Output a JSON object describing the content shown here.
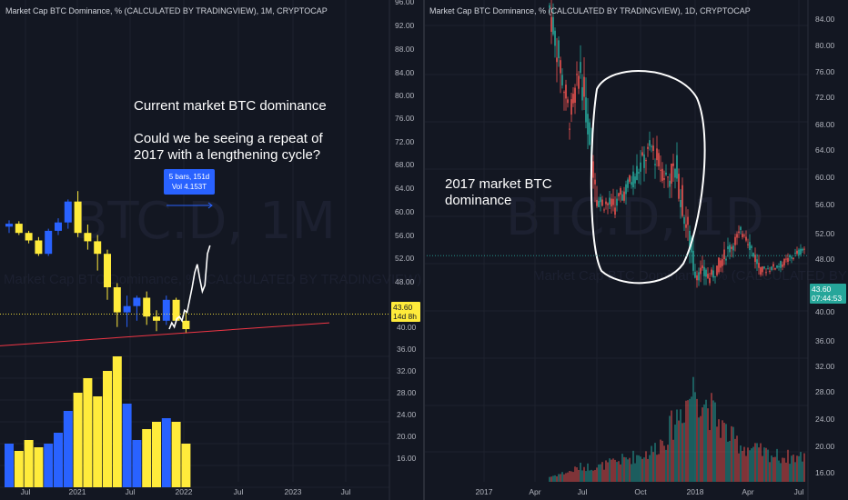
{
  "left": {
    "header": "Market Cap BTC Dominance, % (CALCULATED BY TRADINGVIEW), 1M, CRYPTOCAP",
    "watermark": "BTC.D, 1M",
    "watermark_sub": "Market Cap BTC Dominance, % (CALCULATED BY TRADINGVIEW)",
    "annotation": "Current market BTC dominance\n\nCould we be seeing a repeat of\n2017 with a lengthening cycle?",
    "measure_label": "5 bars, 151d\nVol 4.153T",
    "price_tag": "43.60",
    "countdown": "14d 8h",
    "y_ticks": [
      "40.00",
      "36.00",
      "32.00",
      "28.00",
      "24.00",
      "20.00",
      "16.00"
    ],
    "x_ticks": [
      "Jul",
      "2021",
      "Jul",
      "2022",
      "Jul",
      "2023",
      "Jul"
    ]
  },
  "right": {
    "header": "Market Cap BTC Dominance, % (CALCULATED BY TRADINGVIEW), 1D, CRYPTOCAP",
    "watermark": "BTC.D, 1D",
    "watermark_sub": "Market Cap BTC Dominance, % (CALCULATED BY TRADINGVIEW)",
    "annotation": "2017 market BTC\ndominance",
    "price_tag": "43.60",
    "countdown": "07:44:53",
    "y_ticks": [
      "84.00",
      "80.00",
      "76.00",
      "72.00",
      "68.00",
      "64.00",
      "60.00",
      "56.00",
      "52.00",
      "48.00",
      "40.00",
      "36.00",
      "32.00",
      "28.00",
      "24.00",
      "20.00",
      "16.00"
    ],
    "x_ticks": [
      "2017",
      "Apr",
      "Jul",
      "Oct",
      "2018",
      "Apr",
      "Jul"
    ]
  },
  "divider_axis": {
    "y_ticks": [
      "96.00",
      "92.00",
      "88.00",
      "84.00",
      "80.00",
      "76.00",
      "72.00",
      "68.00",
      "64.00",
      "60.00",
      "56.00",
      "52.00",
      "48.00"
    ]
  },
  "colors": {
    "bg": "#131722",
    "up_blue": "#2962ff",
    "down_yellow": "#ffeb3b",
    "white": "#ffffff",
    "trend": "#f23645",
    "vol_green": "#26a69a",
    "vol_red": "#ef5350"
  },
  "chart_data": [
    {
      "type": "candlestick",
      "title": "Market Cap BTC Dominance, % (CALCULATED BY TRADINGVIEW), 1M, CRYPTOCAP",
      "x": [
        "2020-06",
        "2020-07",
        "2020-08",
        "2020-09",
        "2020-10",
        "2020-11",
        "2020-12",
        "2021-01",
        "2021-02",
        "2021-03",
        "2021-04",
        "2021-05",
        "2021-06",
        "2021-07",
        "2021-08",
        "2021-09",
        "2021-10",
        "2021-11",
        "2021-12"
      ],
      "ohlc": [
        [
          64.5,
          66.0,
          63.0,
          65.2
        ],
        [
          65.2,
          65.8,
          62.5,
          63.0
        ],
        [
          63.0,
          63.5,
          60.5,
          61.2
        ],
        [
          61.2,
          62.0,
          57.5,
          58.0
        ],
        [
          58.0,
          64.0,
          57.5,
          63.5
        ],
        [
          63.5,
          66.5,
          62.5,
          65.5
        ],
        [
          65.5,
          71.0,
          64.0,
          70.5
        ],
        [
          70.5,
          73.0,
          62.0,
          63.0
        ],
        [
          63.0,
          65.0,
          59.0,
          61.0
        ],
        [
          61.0,
          62.5,
          54.0,
          58.0
        ],
        [
          58.0,
          59.0,
          47.0,
          50.0
        ],
        [
          50.0,
          51.0,
          40.5,
          44.0
        ],
        [
          44.0,
          48.0,
          40.5,
          45.5
        ],
        [
          45.5,
          48.0,
          42.0,
          47.5
        ],
        [
          47.5,
          49.0,
          41.0,
          43.0
        ],
        [
          43.0,
          44.5,
          39.5,
          42.0
        ],
        [
          42.0,
          48.0,
          41.0,
          47.0
        ],
        [
          47.0,
          47.5,
          41.5,
          42.0
        ],
        [
          42.0,
          44.0,
          39.0,
          40.0
        ]
      ],
      "volume_T": [
        1.2,
        1.0,
        1.3,
        1.1,
        1.2,
        1.5,
        2.1,
        2.6,
        3.0,
        2.5,
        3.2,
        3.6,
        2.3,
        1.3,
        1.6,
        1.8,
        1.9,
        1.8,
        1.2
      ],
      "overlay_daily_2022": [
        40.0,
        41.5,
        40.5,
        42.5,
        43.0,
        42.0,
        44.5,
        44.0,
        47.0,
        50.0,
        53.5,
        55.5,
        52.0,
        49.0,
        50.5,
        58.0,
        60.0
      ],
      "trendline": {
        "from": [
          "2020-06",
          36.0
        ],
        "to": [
          "2023-09",
          41.5
        ]
      },
      "y_axis_labels_visible": [
        "40.00",
        "36.00",
        "32.00",
        "28.00",
        "24.00",
        "20.00",
        "16.00"
      ],
      "last_price": 43.6
    },
    {
      "type": "candlestick",
      "title": "Market Cap BTC Dominance, % (CALCULATED BY TRADINGVIEW), 1D, CRYPTOCAP",
      "x": [
        "2017-03",
        "2017-04",
        "2017-05",
        "2017-06",
        "2017-07",
        "2017-08",
        "2017-09",
        "2017-10",
        "2017-11",
        "2017-12",
        "2018-01",
        "2018-02",
        "2018-03",
        "2018-04",
        "2018-05",
        "2018-06",
        "2018-07"
      ],
      "close": [
        86.0,
        76.0,
        67.0,
        75.5,
        53.0,
        52.0,
        57.0,
        62.0,
        57.0,
        58.0,
        41.0,
        40.0,
        45.0,
        48.0,
        41.0,
        42.0,
        45.0
      ],
      "high": [
        95.0,
        87.0,
        78.0,
        80.0,
        63.0,
        55.0,
        65.0,
        70.0,
        71.0,
        66.0,
        50.0,
        43.0,
        48.0,
        52.0,
        46.0,
        44.0,
        47.0
      ],
      "low": [
        82.0,
        68.0,
        61.0,
        63.0,
        51.0,
        50.0,
        52.0,
        55.0,
        52.0,
        49.0,
        38.0,
        36.5,
        40.5,
        42.0,
        40.0,
        40.5,
        42.0
      ],
      "volume_relative": [
        0.05,
        0.08,
        0.1,
        0.15,
        0.15,
        0.2,
        0.25,
        0.3,
        0.45,
        0.65,
        0.95,
        0.7,
        0.45,
        0.35,
        0.3,
        0.25,
        0.25
      ],
      "y_range": [
        14,
        88
      ],
      "last_price": 43.6
    }
  ]
}
